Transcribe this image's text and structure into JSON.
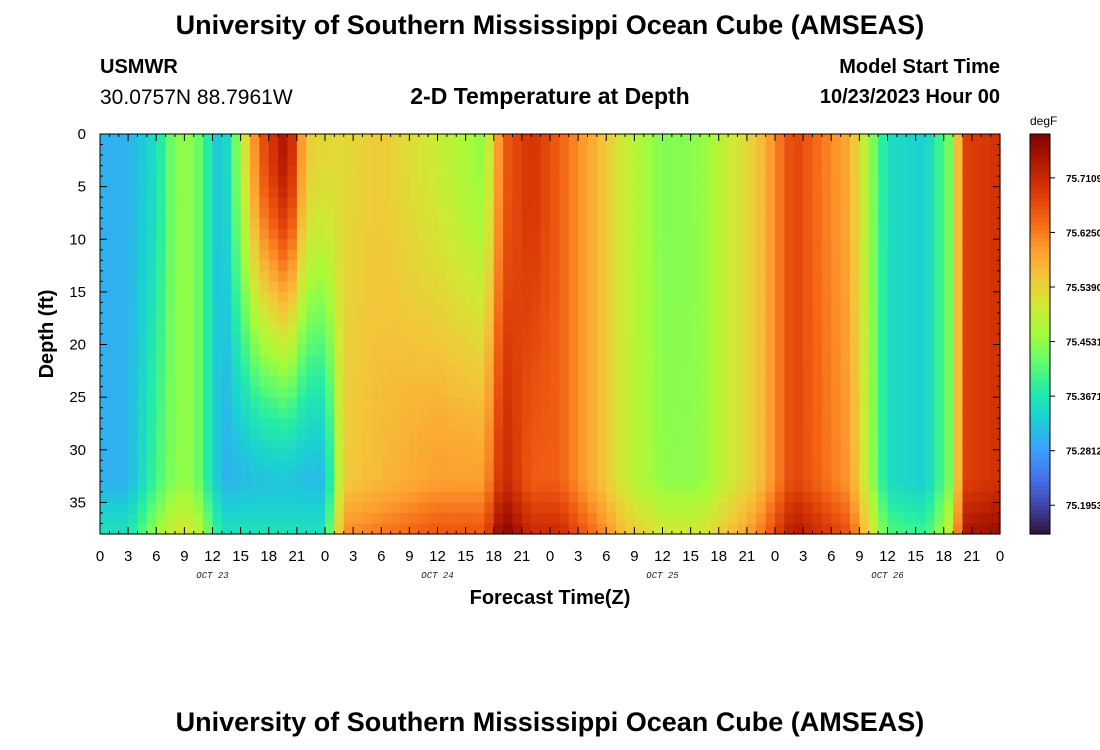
{
  "header": {
    "title": "University of Southern Mississippi Ocean Cube (AMSEAS)",
    "station": "USMWR",
    "coords": "30.0757N  88.7961W",
    "plot_title": "2-D Temperature at Depth",
    "start_label": "Model Start Time",
    "start_value": "10/23/2023 Hour 00"
  },
  "footer": {
    "title": "University of Southern Mississippi Ocean Cube (AMSEAS)"
  },
  "chart_data": {
    "type": "heatmap",
    "title": "2-D Temperature at Depth",
    "xlabel": "Forecast Time(Z)",
    "ylabel": "Depth (ft)",
    "x_ticks": [
      "0",
      "3",
      "6",
      "9",
      "12",
      "15",
      "18",
      "21",
      "0",
      "3",
      "6",
      "9",
      "12",
      "15",
      "18",
      "21",
      "0",
      "3",
      "6",
      "9",
      "12",
      "15",
      "18",
      "21",
      "0",
      "3",
      "6",
      "9",
      "12",
      "15",
      "18",
      "21",
      "0"
    ],
    "x_range_hours": [
      0,
      96
    ],
    "date_labels": [
      {
        "label": "OCT 23",
        "hour": 12
      },
      {
        "label": "OCT 24",
        "hour": 36
      },
      {
        "label": "OCT 25",
        "hour": 60
      },
      {
        "label": "OCT 26",
        "hour": 84
      }
    ],
    "y_ticks": [
      "0",
      "5",
      "10",
      "15",
      "20",
      "25",
      "30",
      "35"
    ],
    "ylim": [
      0,
      38
    ],
    "y_inverted": true,
    "colorbar": {
      "unit": "degF",
      "min": 75.15,
      "max": 75.78,
      "tick_values": [
        75.7109,
        75.625,
        75.539,
        75.4531,
        75.3671,
        75.2812,
        75.1953
      ],
      "tick_labels": [
        "75.7109",
        "75.6250",
        "75.5390",
        "75.4531",
        "75.3671",
        "75.2812",
        "75.1953"
      ],
      "colors": [
        "#30123b",
        "#4145ab",
        "#4675ed",
        "#39a2fc",
        "#1bcfd4",
        "#24eca6",
        "#61fc6c",
        "#a4fc3b",
        "#d1e834",
        "#f3c63a",
        "#fe9b2d",
        "#f36315",
        "#d93806",
        "#b11901",
        "#7a0403"
      ]
    },
    "cross_section_hour_depth_degF": {
      "hours": [
        0,
        3,
        6,
        8,
        10,
        13,
        17,
        20,
        22,
        24,
        26,
        30,
        36,
        41,
        43,
        46,
        49,
        54,
        56,
        60,
        64,
        70,
        74,
        80,
        84,
        88,
        91,
        92,
        96
      ],
      "surface": [
        75.3,
        75.3,
        75.35,
        75.45,
        75.45,
        75.3,
        75.65,
        75.75,
        75.55,
        75.53,
        75.53,
        75.55,
        75.5,
        75.45,
        75.65,
        75.7,
        75.65,
        75.55,
        75.5,
        75.44,
        75.45,
        75.55,
        75.68,
        75.58,
        75.35,
        75.33,
        75.45,
        75.68,
        75.7
      ],
      "deep": [
        75.3,
        75.3,
        75.4,
        75.45,
        75.45,
        75.3,
        75.3,
        75.3,
        75.3,
        75.3,
        75.55,
        75.57,
        75.6,
        75.6,
        75.72,
        75.65,
        75.65,
        75.55,
        75.5,
        75.45,
        75.45,
        75.55,
        75.68,
        75.6,
        75.35,
        75.33,
        75.45,
        75.68,
        75.7
      ]
    }
  }
}
